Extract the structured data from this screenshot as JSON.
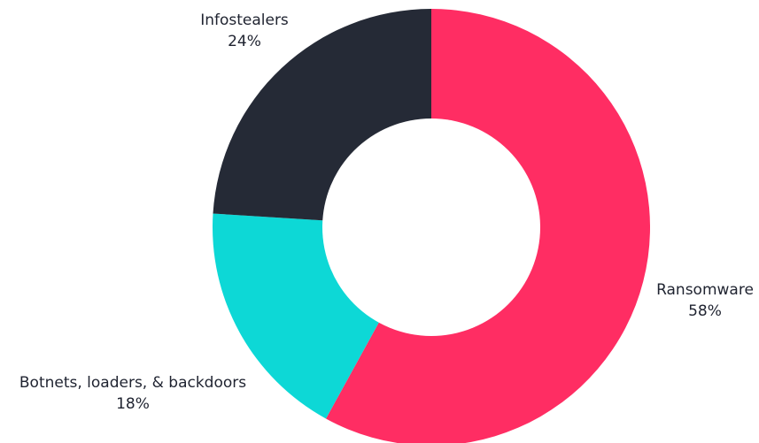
{
  "chart_data": {
    "type": "pie",
    "style": "donut",
    "title": "",
    "slices": [
      {
        "label": "Ransomware",
        "value": 58,
        "display": "58%",
        "color": "#FF2D63"
      },
      {
        "label": "Botnets, loaders, & backdoors",
        "value": 18,
        "display": "18%",
        "color": "#0DD8D6"
      },
      {
        "label": "Infostealers",
        "value": 24,
        "display": "24%",
        "color": "#252A36"
      }
    ],
    "start_angle_deg": 0,
    "direction": "clockwise",
    "legend": "none"
  }
}
